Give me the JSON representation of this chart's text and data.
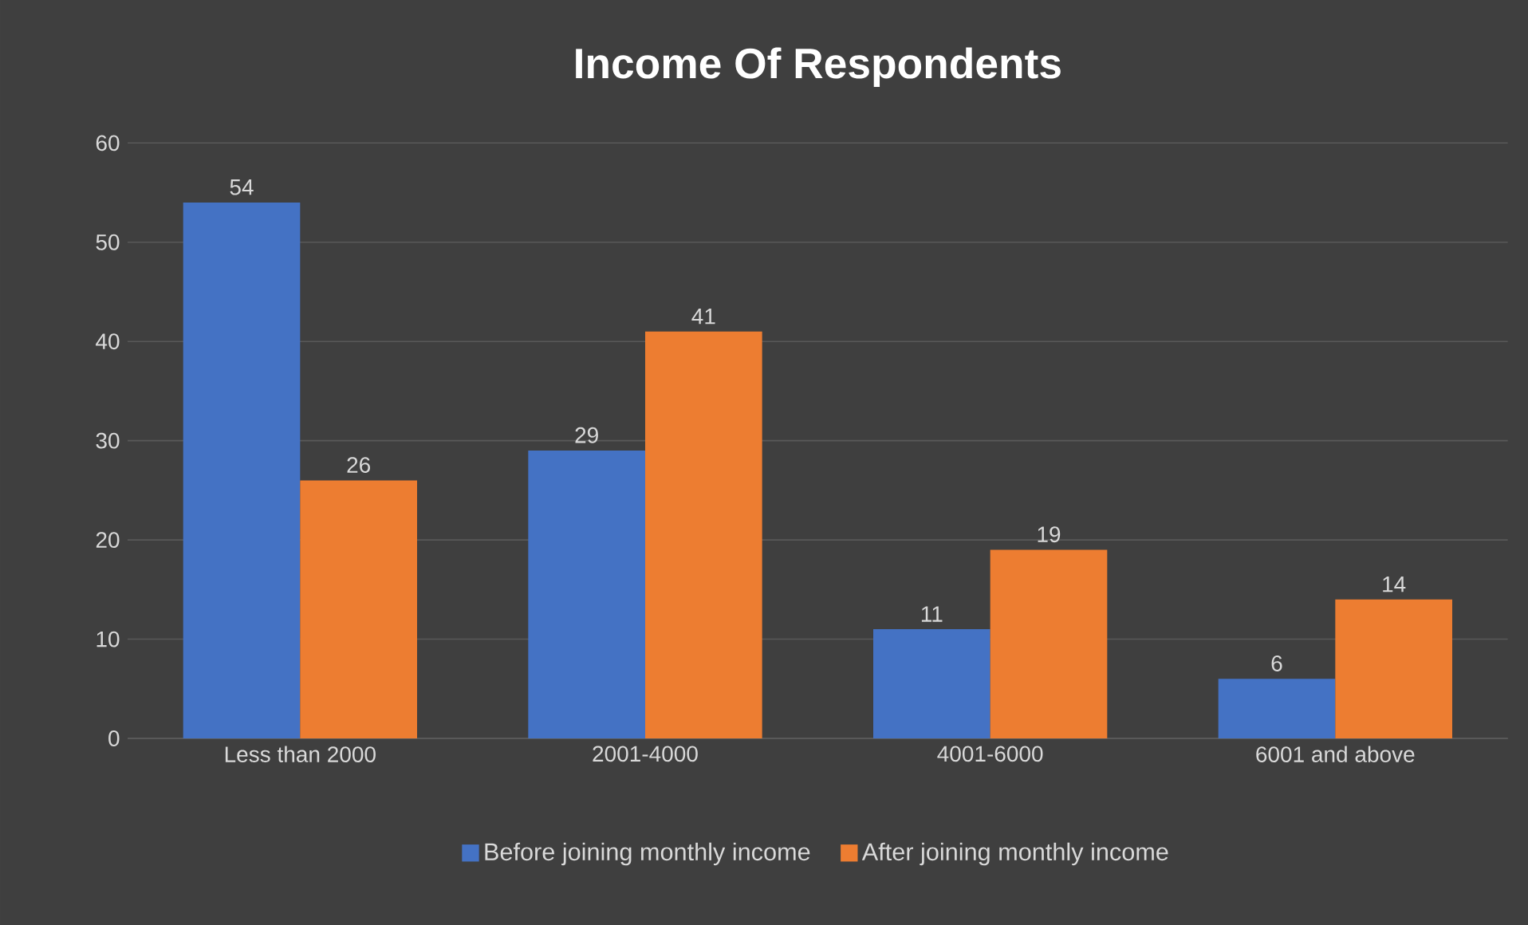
{
  "chart_data": {
    "type": "bar",
    "title": "Income Of Respondents",
    "categories": [
      "Less than 2000",
      "2001-4000",
      "4001-6000",
      "6001 and above"
    ],
    "series": [
      {
        "name": "Before joining monthly income",
        "color": "#4472c4",
        "values": [
          54,
          29,
          11,
          6
        ]
      },
      {
        "name": "After joining monthly income",
        "color": "#ed7d31",
        "values": [
          26,
          41,
          19,
          14
        ]
      }
    ],
    "ylim": [
      0,
      60
    ],
    "yticks": [
      0,
      10,
      20,
      30,
      40,
      50,
      60
    ],
    "grid": "y",
    "legend": "bottom",
    "data_labels": true
  }
}
